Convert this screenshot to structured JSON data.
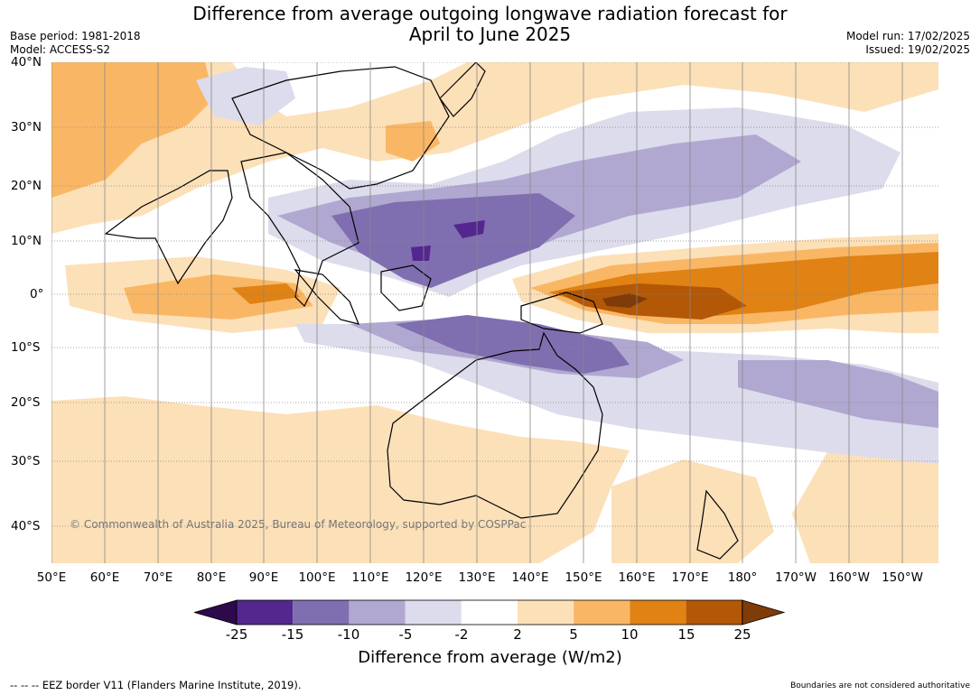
{
  "header": {
    "title_line1": "Difference from average outgoing longwave radiation forecast for",
    "title_line2": "April to June 2025",
    "base_period": "Base period: 1981-2018",
    "model": "Model: ACCESS-S2",
    "model_run": "Model run: 17/02/2025",
    "issued": "Issued: 19/02/2025"
  },
  "map": {
    "lat_labels": [
      "40°N",
      "30°N",
      "20°N",
      "10°N",
      "0°",
      "10°S",
      "20°S",
      "30°S",
      "40°S"
    ],
    "lon_labels": [
      "50°E",
      "60°E",
      "70°E",
      "80°E",
      "90°E",
      "100°E",
      "110°E",
      "120°E",
      "130°E",
      "140°E",
      "150°E",
      "160°E",
      "170°E",
      "180°",
      "170°W",
      "160°W",
      "150°W"
    ],
    "copyright": "© Commonwealth of Australia 2025, Bureau of Meteorology, supported by COSPPac"
  },
  "colorbar": {
    "ticks": [
      "-25",
      "-15",
      "-10",
      "-5",
      "-2",
      "2",
      "5",
      "10",
      "15",
      "25"
    ],
    "colors": [
      "#2d0a4a",
      "#54278f",
      "#7f6fb0",
      "#b0a8d0",
      "#dcdcec",
      "#ffffff",
      "#fce0b8",
      "#f9b765",
      "#e08214",
      "#b35806",
      "#7f3b08"
    ],
    "title": "Difference from average (W/m2)"
  },
  "footer": {
    "eez_note": "--  --  -- EEZ border V11 (Flanders Marine Institute, 2019).",
    "disclaimer": "Boundaries are not considered authoritative"
  }
}
